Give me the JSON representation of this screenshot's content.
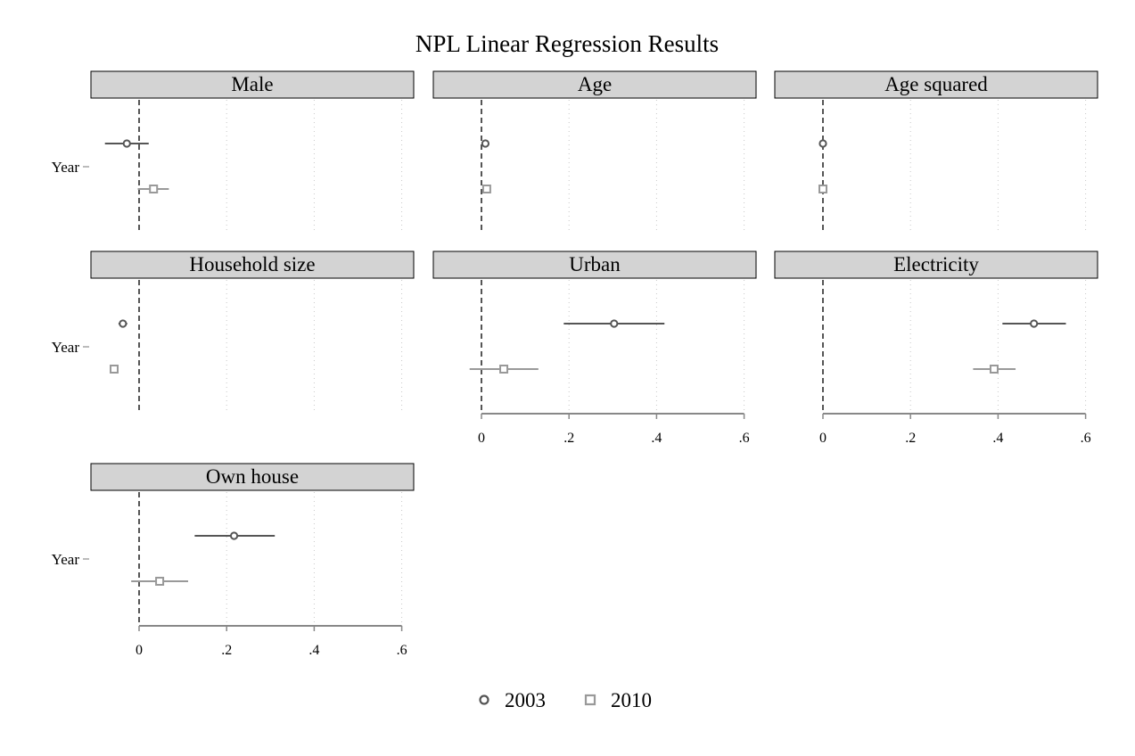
{
  "chart_data": {
    "type": "scatter",
    "title": "NPL Linear Regression Results",
    "y_label": "Year",
    "xlim": [
      0,
      0.6
    ],
    "x_ticks": [
      0,
      0.2,
      0.4,
      0.6
    ],
    "x_tick_labels": [
      "0",
      ".2",
      ".4",
      ".6"
    ],
    "reference_line": 0,
    "grid": true,
    "legend_placement": "bottom-center",
    "series": [
      {
        "name": "2003",
        "marker": "circle",
        "color": "#555555"
      },
      {
        "name": "2010",
        "marker": "square",
        "color": "#999999"
      }
    ],
    "panels": [
      {
        "label": "Male",
        "show_x_axis": false,
        "estimates": [
          {
            "series": "2003",
            "value": -0.028,
            "ci": [
              -0.078,
              0.022
            ]
          },
          {
            "series": "2010",
            "value": 0.033,
            "ci": [
              -0.003,
              0.068
            ]
          }
        ]
      },
      {
        "label": "Age",
        "show_x_axis": false,
        "estimates": [
          {
            "series": "2003",
            "value": 0.009,
            "ci": [
              0.006,
              0.012
            ]
          },
          {
            "series": "2010",
            "value": 0.012,
            "ci": [
              0.008,
              0.016
            ]
          }
        ]
      },
      {
        "label": "Age squared",
        "show_x_axis": false,
        "estimates": [
          {
            "series": "2003",
            "value": 0.0,
            "ci": [
              0.0,
              0.0
            ]
          },
          {
            "series": "2010",
            "value": 0.0,
            "ci": [
              0.0,
              0.0
            ]
          }
        ]
      },
      {
        "label": "Household size",
        "show_x_axis": false,
        "estimates": [
          {
            "series": "2003",
            "value": -0.037,
            "ci": [
              -0.047,
              -0.027
            ]
          },
          {
            "series": "2010",
            "value": -0.057,
            "ci": [
              -0.064,
              -0.05
            ]
          }
        ]
      },
      {
        "label": "Urban",
        "show_x_axis": true,
        "estimates": [
          {
            "series": "2003",
            "value": 0.303,
            "ci": [
              0.188,
              0.418
            ]
          },
          {
            "series": "2010",
            "value": 0.051,
            "ci": [
              -0.027,
              0.13
            ]
          }
        ]
      },
      {
        "label": "Electricity",
        "show_x_axis": true,
        "estimates": [
          {
            "series": "2003",
            "value": 0.482,
            "ci": [
              0.41,
              0.555
            ]
          },
          {
            "series": "2010",
            "value": 0.391,
            "ci": [
              0.343,
              0.44
            ]
          }
        ]
      },
      {
        "label": "Own house",
        "show_x_axis": true,
        "estimates": [
          {
            "series": "2003",
            "value": 0.217,
            "ci": [
              0.127,
              0.31
            ]
          },
          {
            "series": "2010",
            "value": 0.047,
            "ci": [
              -0.018,
              0.112
            ]
          }
        ]
      }
    ]
  }
}
